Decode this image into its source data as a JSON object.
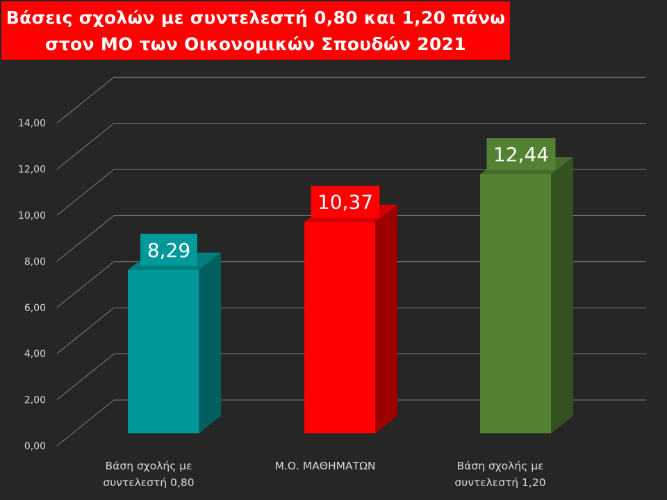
{
  "chart_data": {
    "type": "bar",
    "title_lines": [
      "Βάσεις σχολών με συντελεστή 0,80 και 1,20 πάνω",
      "στον ΜΟ των Οικονομικών Σπουδών 2021"
    ],
    "categories": [
      [
        "Βάση σχολής με",
        "συντελεστή 0,80"
      ],
      [
        "Μ.Ο. ΜΑΘΗΜΑΤΩΝ"
      ],
      [
        "Βάση σχολής με",
        "συντελεστή 1,20"
      ]
    ],
    "values": [
      8.29,
      10.37,
      12.44
    ],
    "data_labels": [
      "8,29",
      "10,37",
      "12,44"
    ],
    "y_ticks": [
      "0,00",
      "2,00",
      "4,00",
      "6,00",
      "8,00",
      "10,00",
      "12,00",
      "14,00"
    ],
    "ylim": [
      0,
      14
    ],
    "grid": true,
    "style_3d": true,
    "colors": [
      "#009999",
      "#ff0000",
      "#548235"
    ],
    "title_background": "#ff0000",
    "background": "#262626"
  }
}
